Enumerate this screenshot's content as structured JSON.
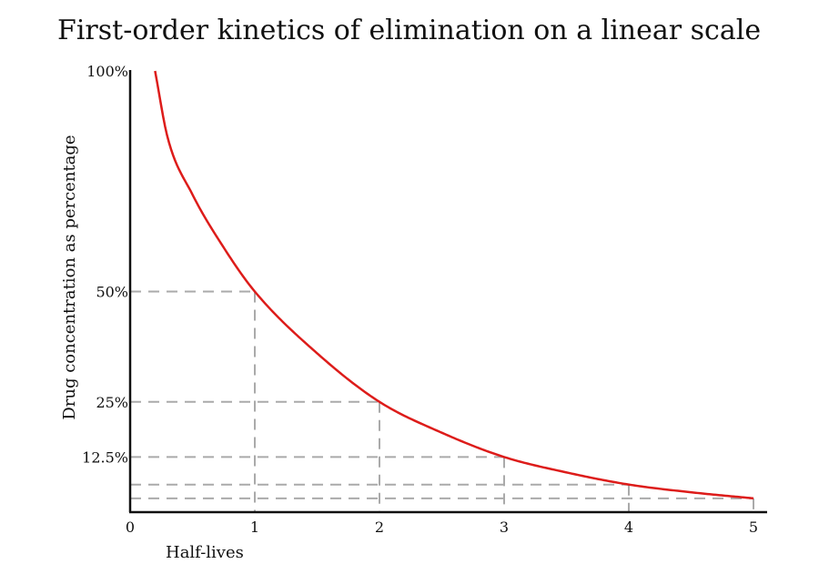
{
  "chart_data": {
    "type": "line",
    "title": "First-order kinetics of elimination on a linear scale",
    "xlabel": "Half-lives",
    "ylabel": "Drug concentration as percentage",
    "xlim": [
      0,
      5
    ],
    "ylim": [
      0,
      100
    ],
    "x_ticks": [
      "0",
      "1",
      "2",
      "3",
      "4",
      "5"
    ],
    "y_ticks": [
      {
        "label": "100%",
        "value": 100
      },
      {
        "label": "50%",
        "value": 50
      },
      {
        "label": "25%",
        "value": 25
      },
      {
        "label": "12.5%",
        "value": 12.5
      }
    ],
    "series": [
      {
        "x": [
          0.2,
          0.3,
          0.5,
          0.75,
          1,
          1.5,
          2,
          2.5,
          3,
          3.5,
          4,
          4.5,
          5
        ],
        "y": [
          100,
          85,
          72,
          60,
          50,
          36,
          25,
          18,
          12.5,
          9,
          6.25,
          4.5,
          3.125
        ],
        "color": "#dd1c1a"
      }
    ],
    "reference_lines": [
      {
        "x": 1,
        "y": 50
      },
      {
        "x": 2,
        "y": 25
      },
      {
        "x": 3,
        "y": 12.5
      },
      {
        "x": 4,
        "y": 6.25
      },
      {
        "x": 5,
        "y": 3.125
      }
    ],
    "grid": false,
    "legend": "none",
    "colors": {
      "curve": "#dd1c1a",
      "guides": "#aaaaaa",
      "axes": "#111111"
    }
  }
}
